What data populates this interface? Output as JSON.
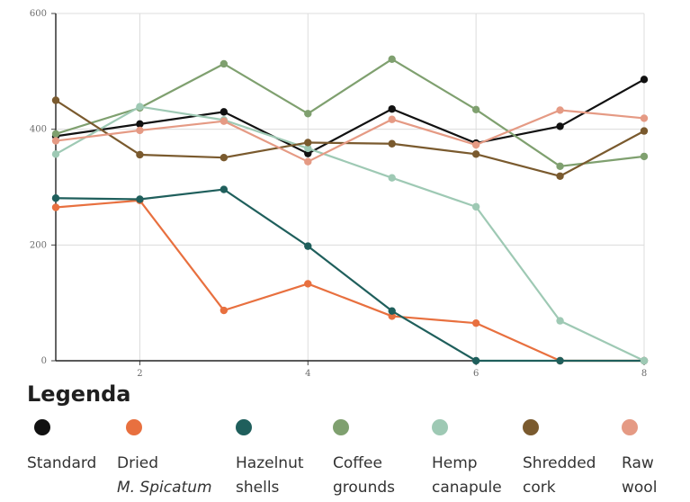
{
  "chart_data": {
    "type": "line",
    "x": [
      1,
      2,
      3,
      4,
      5,
      6,
      7,
      8
    ],
    "xlim": [
      1,
      8
    ],
    "ylim": [
      0,
      600
    ],
    "xticks": [
      "2",
      "4",
      "6",
      "8"
    ],
    "yticks": [
      "0",
      "200",
      "400",
      "600"
    ],
    "grid": true,
    "legend_title": "Legenda",
    "legend_position": "bottom",
    "series": [
      {
        "name": "Standard",
        "name_line1": "Standard",
        "name_line2": "",
        "color": "#111111",
        "values": [
          388,
          409,
          430,
          358,
          435,
          376,
          405,
          486
        ]
      },
      {
        "name": "Dried M. Spicatum",
        "name_line1": "Dried",
        "name_line2": "M. Spicatum",
        "color": "#e8703f",
        "values": [
          265,
          277,
          87,
          133,
          77,
          65,
          0,
          0
        ]
      },
      {
        "name": "Hazelnut shells",
        "name_line1": "Hazelnut",
        "name_line2": "shells",
        "color": "#1f5f5c",
        "values": [
          281,
          279,
          296,
          198,
          86,
          0,
          0,
          0
        ]
      },
      {
        "name": "Coffee grounds",
        "name_line1": "Coffee",
        "name_line2": "grounds",
        "color": "#7fa06f",
        "values": [
          392,
          437,
          513,
          427,
          521,
          434,
          336,
          353
        ]
      },
      {
        "name": "Hemp canapule",
        "name_line1": "Hemp",
        "name_line2": "canapule",
        "color": "#9ec9b4",
        "values": [
          357,
          439,
          416,
          367,
          316,
          266,
          69,
          0
        ]
      },
      {
        "name": "Shredded cork",
        "name_line1": "Shredded",
        "name_line2": "cork",
        "color": "#7a5a2e",
        "values": [
          450,
          356,
          351,
          377,
          375,
          357,
          319,
          397
        ]
      },
      {
        "name": "Raw wool",
        "name_line1": "Raw",
        "name_line2": "wool",
        "color": "#e59a84",
        "values": [
          380,
          398,
          414,
          344,
          417,
          373,
          433,
          419
        ]
      }
    ]
  }
}
